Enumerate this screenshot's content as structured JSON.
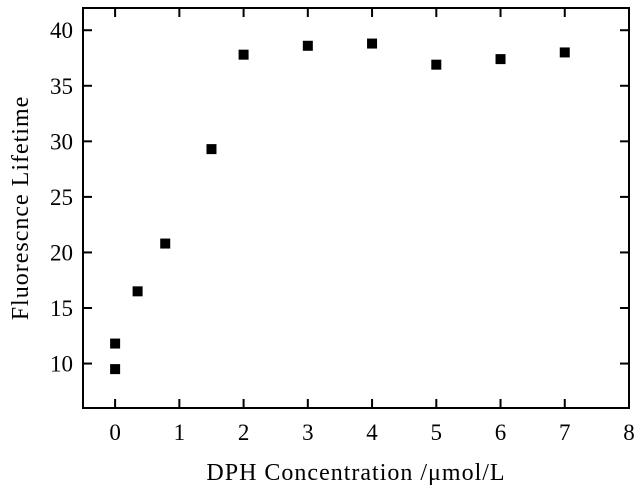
{
  "chart_data": {
    "type": "scatter",
    "title": "",
    "xlabel": "DPH  Concentration /μmol/L",
    "ylabel": "Fluorescnce  Lifetime",
    "xlim": [
      -0.5,
      8
    ],
    "ylim": [
      6,
      42
    ],
    "xticks": [
      0,
      1,
      2,
      3,
      4,
      5,
      6,
      7,
      8
    ],
    "yticks": [
      10,
      15,
      20,
      25,
      30,
      35,
      40
    ],
    "grid": false,
    "legend": "none",
    "marker": "square",
    "color": "#000000",
    "series": [
      {
        "x": [
          0,
          0,
          0.35,
          0.78,
          1.5,
          2,
          3,
          4,
          5,
          6,
          7
        ],
        "y": [
          9.5,
          11.8,
          16.5,
          20.8,
          29.3,
          37.8,
          38.6,
          38.8,
          36.9,
          37.4,
          38.0
        ]
      }
    ]
  }
}
